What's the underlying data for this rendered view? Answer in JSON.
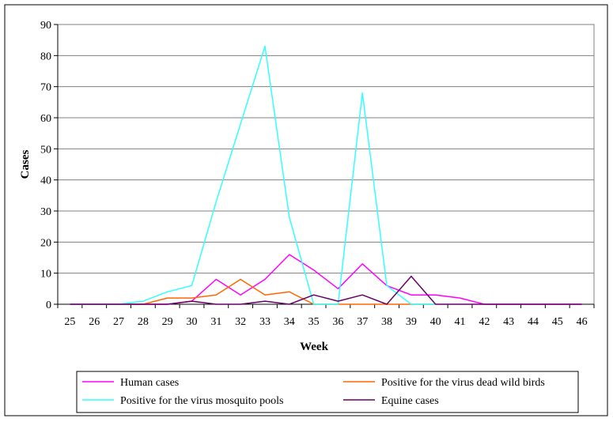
{
  "chart_data": {
    "type": "line",
    "title": "",
    "xlabel": "Week",
    "ylabel": "Cases",
    "x": [
      "25",
      "26",
      "27",
      "28",
      "29",
      "30",
      "31",
      "32",
      "33",
      "34",
      "35",
      "36",
      "37",
      "38",
      "39",
      "40",
      "41",
      "42",
      "43",
      "44",
      "45",
      "46"
    ],
    "ylim": [
      0,
      90
    ],
    "yticks": [
      "0",
      "10",
      "20",
      "30",
      "40",
      "50",
      "60",
      "70",
      "80",
      "90"
    ],
    "grid": "horizontal",
    "legend_position": "bottom",
    "series": [
      {
        "name": "Human cases",
        "color": "#ff00ff",
        "values": [
          0,
          0,
          0,
          0,
          0,
          1,
          8,
          3,
          8,
          16,
          11,
          5,
          13,
          6,
          3,
          3,
          2,
          0,
          0,
          0,
          0,
          0
        ]
      },
      {
        "name": "Positive for the virus dead wild birds",
        "color": "#ff6600",
        "values": [
          0,
          0,
          0,
          0,
          2,
          2,
          3,
          8,
          3,
          4,
          0,
          0,
          0,
          0,
          0,
          0,
          null,
          null,
          null,
          null,
          null,
          null
        ]
      },
      {
        "name": "Positive for the virus mosquito pools",
        "color": "#33ffff",
        "values": [
          0,
          0,
          0,
          1,
          4,
          6,
          33,
          58,
          83,
          28,
          0,
          0,
          68,
          6,
          0,
          0,
          null,
          null,
          null,
          null,
          null,
          null
        ]
      },
      {
        "name": "Equine cases",
        "color": "#660066",
        "values": [
          0,
          0,
          0,
          0,
          0,
          1,
          0,
          0,
          1,
          0,
          3,
          1,
          3,
          0,
          9,
          0,
          0,
          0,
          0,
          0,
          0,
          0
        ]
      }
    ]
  }
}
